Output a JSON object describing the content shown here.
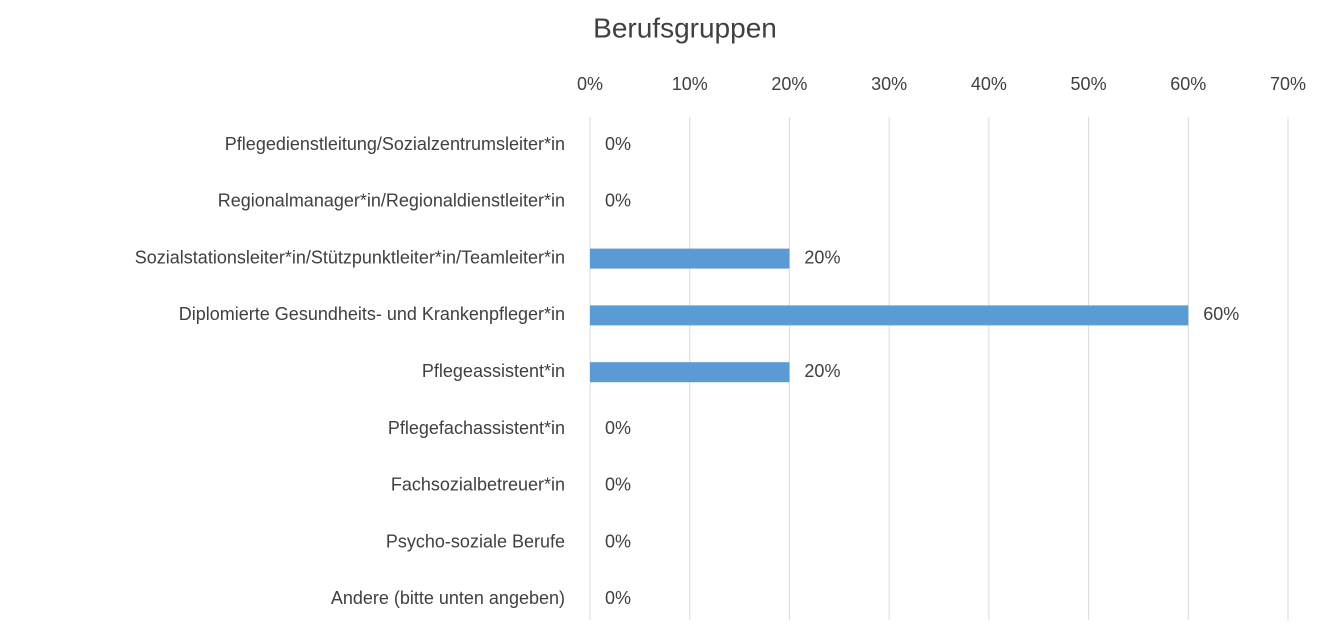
{
  "chart_data": {
    "type": "barh",
    "title": "Berufsgruppen",
    "categories": [
      "Pflegedienstleitung/Sozialzentrumsleiter*in",
      "Regionalmanager*in/Regionaldienstleiter*in",
      "Sozialstationsleiter*in/Stützpunktleiter*in/Teamleiter*in",
      "Diplomierte Gesundheits- und Krankenpfleger*in",
      "Pflegeassistent*in",
      "Pflegefachassistent*in",
      "Fachsozialbetreuer*in",
      "Psycho-soziale Berufe",
      "Andere (bitte unten angeben)"
    ],
    "values": [
      0,
      0,
      20,
      60,
      20,
      0,
      0,
      0,
      0
    ],
    "value_labels": [
      "0%",
      "0%",
      "20%",
      "60%",
      "20%",
      "0%",
      "0%",
      "0%",
      "0%"
    ],
    "color": "#5b9bd5",
    "xlim": [
      0,
      70
    ],
    "xticks": [
      {
        "value": 0,
        "label": "0%"
      },
      {
        "value": 10,
        "label": "10%"
      },
      {
        "value": 20,
        "label": "20%"
      },
      {
        "value": 30,
        "label": "30%"
      },
      {
        "value": 40,
        "label": "40%"
      },
      {
        "value": 50,
        "label": "50%"
      },
      {
        "value": 60,
        "label": "60%"
      },
      {
        "value": 70,
        "label": "70%"
      }
    ],
    "grid": true
  }
}
